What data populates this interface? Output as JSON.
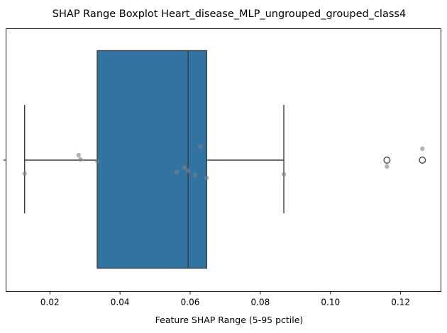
{
  "chart_data": {
    "type": "boxplot",
    "orientation": "horizontal",
    "title": "SHAP Range Boxplot Heart_disease_MLP_ungrouped_grouped_class4",
    "xlabel": "Feature SHAP Range (5-95 pctile)",
    "ylabel": "",
    "xlim": [
      0.0075,
      0.1315
    ],
    "x_ticks": [
      0.02,
      0.04,
      0.06,
      0.08,
      0.1,
      0.12
    ],
    "x_tick_labels": [
      "0.02",
      "0.04",
      "0.06",
      "0.08",
      "0.10",
      "0.12"
    ],
    "box": {
      "whisker_low": 0.0128,
      "q1": 0.0335,
      "median": 0.0594,
      "q3": 0.0647,
      "whisker_high": 0.0867,
      "outliers": [
        0.1161,
        0.1262
      ]
    },
    "points": [
      {
        "x": 0.0128,
        "jitter": 0.095
      },
      {
        "x": 0.0282,
        "jitter": -0.035
      },
      {
        "x": 0.0287,
        "jitter": -0.005
      },
      {
        "x": 0.0335,
        "jitter": 0.008
      },
      {
        "x": 0.0562,
        "jitter": 0.085
      },
      {
        "x": 0.0584,
        "jitter": 0.052
      },
      {
        "x": 0.0594,
        "jitter": 0.075
      },
      {
        "x": 0.0614,
        "jitter": 0.105
      },
      {
        "x": 0.0629,
        "jitter": -0.095
      },
      {
        "x": 0.0647,
        "jitter": 0.125
      },
      {
        "x": 0.0867,
        "jitter": 0.1
      },
      {
        "x": 0.1161,
        "jitter": 0.045
      },
      {
        "x": 0.1262,
        "jitter": -0.08
      }
    ],
    "colors": {
      "box_fill": "#3274a1",
      "box_edge": "#3d3d3d",
      "point": "#808080",
      "background": "#ffffff",
      "axis": "#000000"
    },
    "grid": false
  }
}
